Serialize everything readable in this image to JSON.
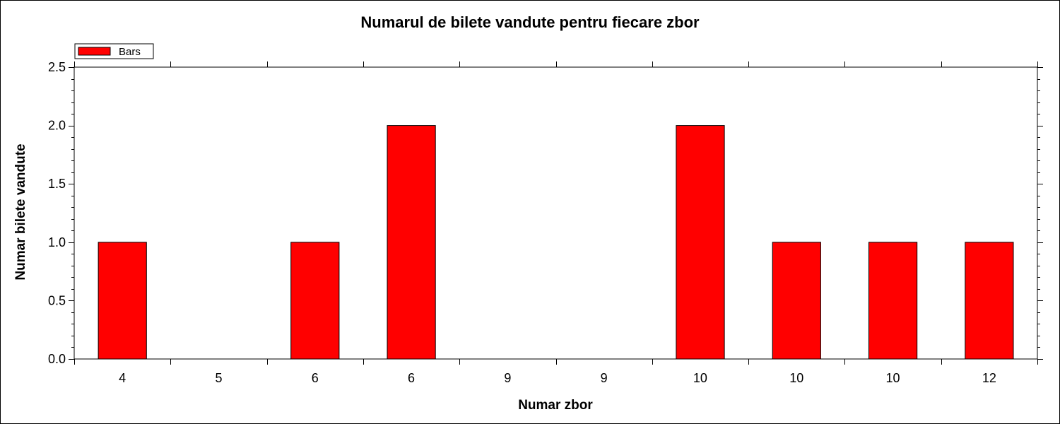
{
  "chart_data": {
    "type": "bar",
    "title": "Numarul de bilete vandute pentru fiecare zbor",
    "xlabel": "Numar zbor",
    "ylabel": "Numar bilete vandute",
    "categories": [
      "4",
      "5",
      "6",
      "6",
      "9",
      "9",
      "10",
      "10",
      "10",
      "12"
    ],
    "series": [
      {
        "name": "Bars",
        "values": [
          1,
          0,
          1,
          2,
          0,
          0,
          2,
          1,
          1,
          1
        ]
      }
    ],
    "ylim": [
      0,
      2.5
    ],
    "yticks": [
      "0.0",
      "0.5",
      "1.0",
      "1.5",
      "2.0",
      "2.5"
    ],
    "grid": false,
    "legend_position": "top-left",
    "bar_color": "#ff0000"
  }
}
